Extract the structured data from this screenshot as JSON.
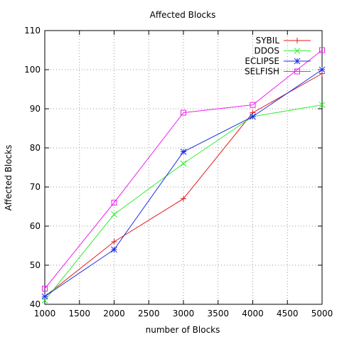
{
  "chart_data": {
    "type": "line",
    "title": "Affected Blocks",
    "xlabel": "number of Blocks",
    "ylabel": "Affected Blocks",
    "xlim": [
      1000,
      5000
    ],
    "ylim": [
      40,
      110
    ],
    "xticks": [
      1000,
      1500,
      2000,
      2500,
      3000,
      3500,
      4000,
      4500,
      5000
    ],
    "yticks": [
      40,
      50,
      60,
      70,
      80,
      90,
      100,
      110
    ],
    "grid": true,
    "legend_position": "top-right",
    "series": [
      {
        "name": "SYBIL",
        "color": "#e41a1c",
        "marker": "plus",
        "x": [
          1000,
          2000,
          3000,
          4000,
          5000
        ],
        "y": [
          42,
          56,
          67,
          89,
          99
        ]
      },
      {
        "name": "DDOS",
        "color": "#33ee33",
        "marker": "cross",
        "x": [
          1000,
          2000,
          3000,
          4000,
          5000
        ],
        "y": [
          41,
          63,
          76,
          88,
          91
        ]
      },
      {
        "name": "ECLIPSE",
        "color": "#1f2ee0",
        "marker": "star",
        "x": [
          1000,
          2000,
          3000,
          4000,
          5000
        ],
        "y": [
          42,
          54,
          79,
          88,
          100
        ]
      },
      {
        "name": "SELFISH",
        "color": "#ee22ee",
        "marker": "square",
        "x": [
          1000,
          2000,
          3000,
          4000,
          5000
        ],
        "y": [
          44,
          66,
          89,
          91,
          105
        ]
      }
    ]
  }
}
